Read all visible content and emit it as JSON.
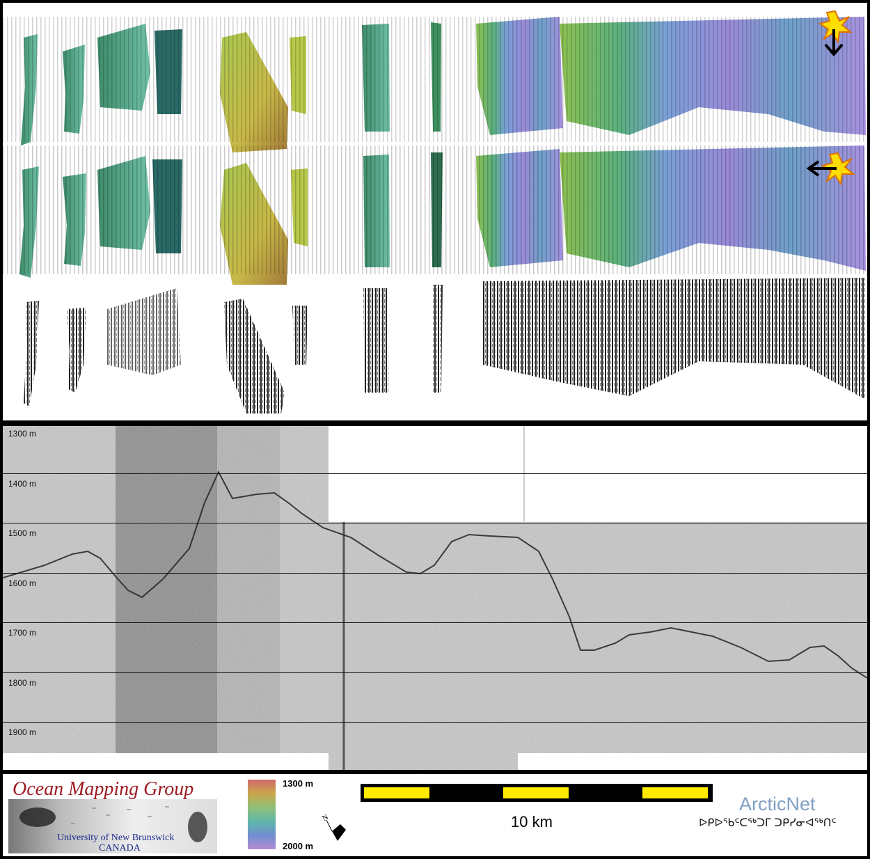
{
  "profile": {
    "depth_labels": [
      "1300 m",
      "1400 m",
      "1500 m",
      "1600 m",
      "1700 m",
      "1800 m",
      "1900 m"
    ]
  },
  "footer": {
    "omg_title": "Ocean Mapping Group",
    "omg_university": "University of New Brunswick",
    "omg_country": "CANADA",
    "colorbar_top": "1300 m",
    "colorbar_bottom": "2000 m",
    "scale_label": "10 km",
    "arcticnet": "ArcticNet",
    "arcticnet_syllabics": "ᐅᑭᐅᖃᑦᑕᖅᑐᒥ ᑐᑭᓯᓂᐊᖅᑎᑦ",
    "north_label": "N"
  },
  "colors": {
    "omg_red": "#9c1c22",
    "omg_blue": "#1a2a8c",
    "scale_yellow": "#ffea00",
    "arctic_blue": "#7f9fc2"
  },
  "icons": [
    "star-burst-icon",
    "arrow-down-icon",
    "arrow-left-icon",
    "north-arrow-icon"
  ]
}
